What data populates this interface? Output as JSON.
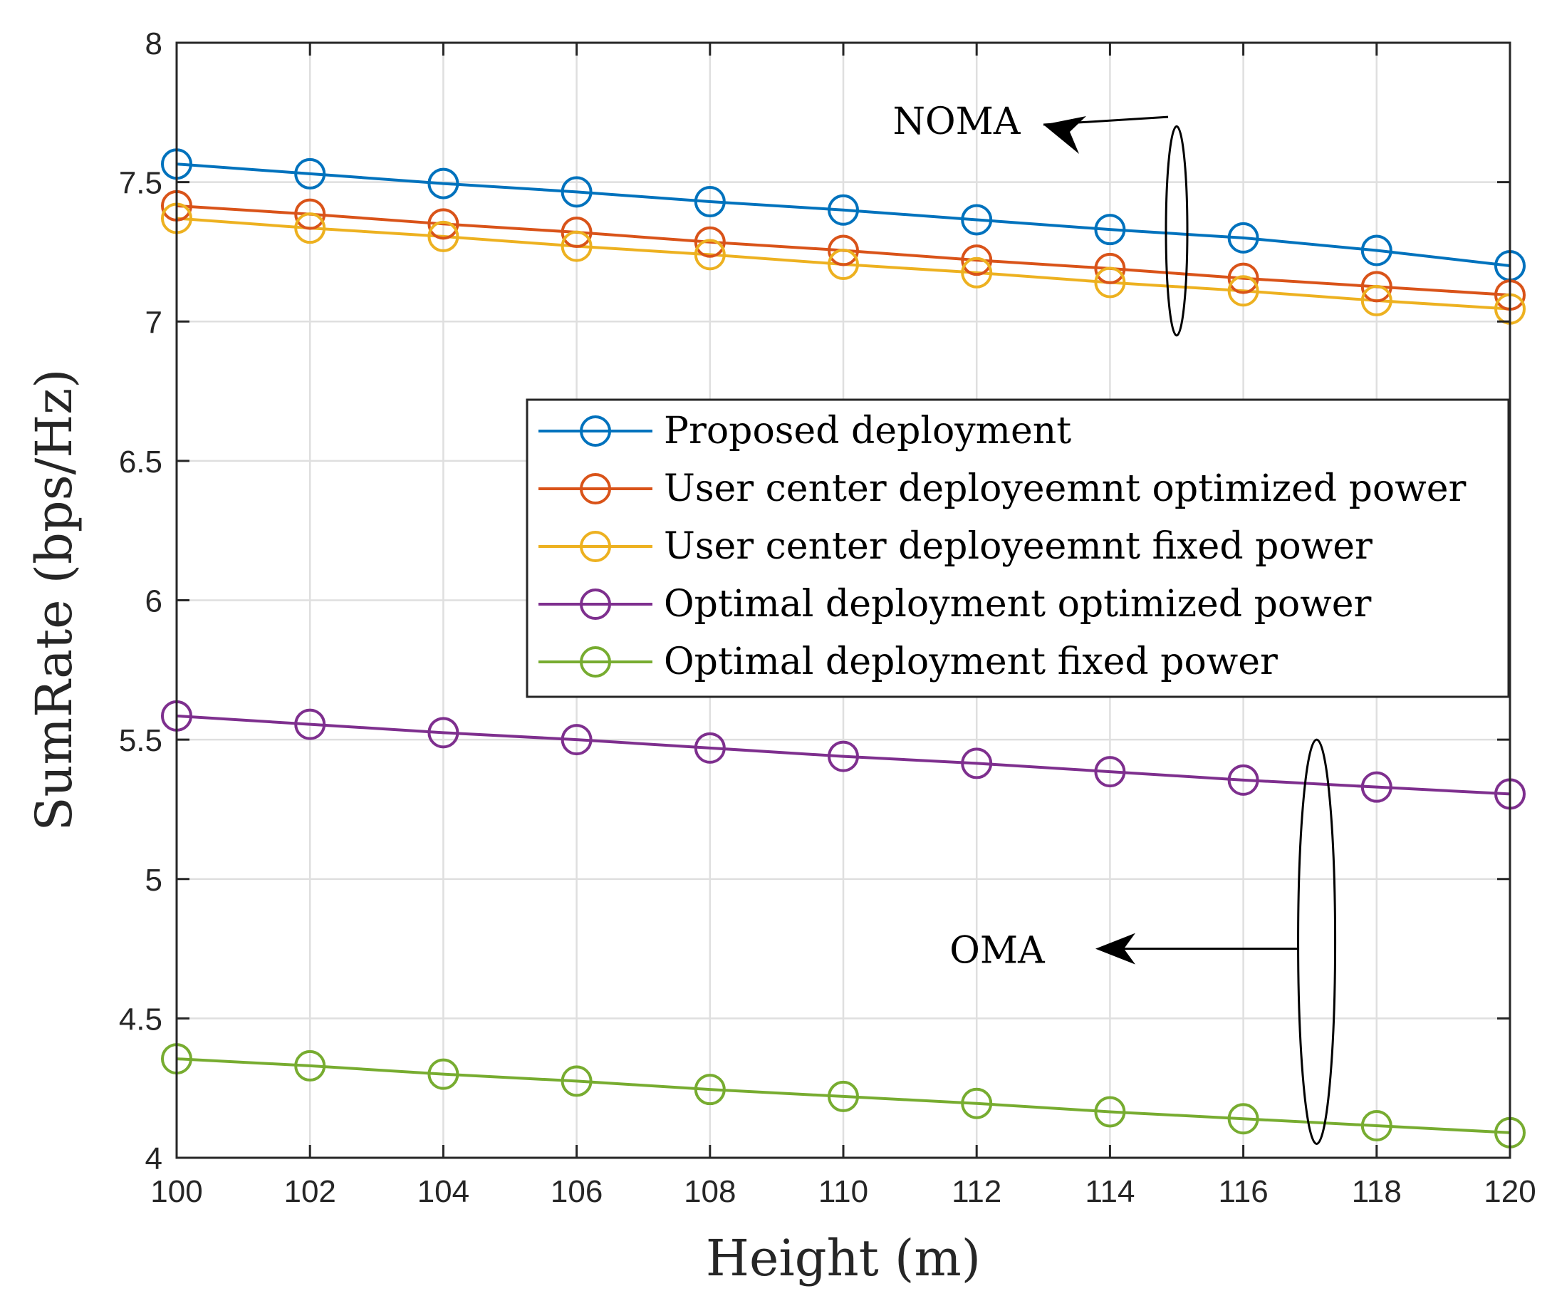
{
  "chart_data": {
    "type": "line",
    "title": "",
    "xlabel": "Height (m)",
    "ylabel": "SumRate (bps/Hz)",
    "xlim": [
      100,
      120
    ],
    "ylim": [
      4,
      8
    ],
    "grid": true,
    "x": [
      100,
      102,
      104,
      106,
      108,
      110,
      112,
      114,
      116,
      118,
      120
    ],
    "xticks": [
      "100",
      "102",
      "104",
      "106",
      "108",
      "110",
      "112",
      "114",
      "116",
      "118",
      "120"
    ],
    "yticks": [
      "4",
      "4.5",
      "5",
      "5.5",
      "6",
      "6.5",
      "7",
      "7.5",
      "8"
    ],
    "legend_position": "center-right",
    "series": [
      {
        "name": "Proposed deployment",
        "color": "#0072BD",
        "marker": "circle",
        "values": [
          7.565,
          7.53,
          7.495,
          7.465,
          7.43,
          7.4,
          7.365,
          7.33,
          7.3,
          7.255,
          7.2
        ]
      },
      {
        "name": "User center deployeemnt optimized power",
        "color": "#D95319",
        "marker": "circle",
        "values": [
          7.415,
          7.385,
          7.35,
          7.32,
          7.285,
          7.255,
          7.22,
          7.19,
          7.155,
          7.125,
          7.095
        ]
      },
      {
        "name": "User center deployeemnt fixed power",
        "color": "#EDB120",
        "marker": "circle",
        "values": [
          7.37,
          7.335,
          7.305,
          7.27,
          7.24,
          7.205,
          7.175,
          7.14,
          7.11,
          7.075,
          7.045
        ]
      },
      {
        "name": "Optimal deployment optimized power",
        "color": "#7E2F8E",
        "marker": "circle",
        "values": [
          5.585,
          5.555,
          5.525,
          5.5,
          5.47,
          5.44,
          5.415,
          5.385,
          5.355,
          5.33,
          5.305
        ]
      },
      {
        "name": "Optimal deployment fixed power",
        "color": "#77AC30",
        "marker": "circle",
        "values": [
          4.355,
          4.33,
          4.3,
          4.275,
          4.245,
          4.22,
          4.195,
          4.165,
          4.14,
          4.115,
          4.09
        ]
      }
    ],
    "annotations": [
      {
        "label": "NOMA",
        "text": "NOMA",
        "ellipse_x": 115,
        "ellipse_y_range": [
          6.95,
          7.7
        ]
      },
      {
        "label": "OMA",
        "text": "OMA",
        "ellipse_x": 117.1,
        "ellipse_y_range": [
          4.05,
          5.5
        ]
      }
    ]
  }
}
